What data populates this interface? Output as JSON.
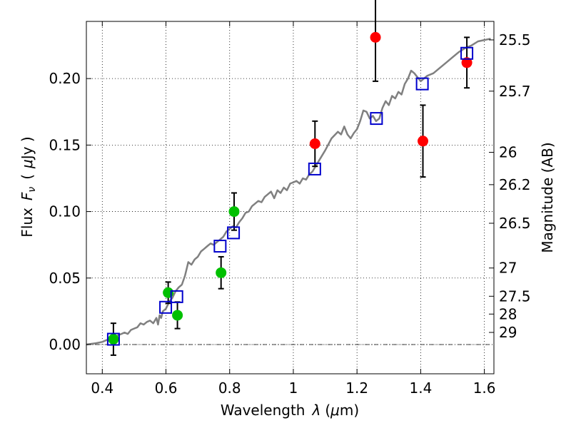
{
  "chart_data": {
    "type": "scatter",
    "xlabel": "Wavelength",
    "xlabel_symbol": "λ",
    "xlabel_unit_open": "(",
    "xlabel_unit_mu": "μ",
    "xlabel_unit_rest": "m)",
    "ylabel_left": "Flux",
    "ylabel_symbol": "F",
    "ylabel_subscript": "ν",
    "ylabel_unit_open": "(",
    "ylabel_unit_mu": "μ",
    "ylabel_unit_rest": "Jy )",
    "ylabel_right": "Magnitude (AB)",
    "xlim": [
      0.35,
      1.63
    ],
    "ylim": [
      -0.022,
      0.243
    ],
    "x_ticks": [
      {
        "value": 0.4,
        "label": "0.4"
      },
      {
        "value": 0.6,
        "label": "0.6"
      },
      {
        "value": 0.8,
        "label": "0.8"
      },
      {
        "value": 1.0,
        "label": "1"
      },
      {
        "value": 1.2,
        "label": "1.2"
      },
      {
        "value": 1.4,
        "label": "1.4"
      },
      {
        "value": 1.6,
        "label": "1.6"
      }
    ],
    "y_ticks": [
      {
        "value": 0.0,
        "label": "0.00"
      },
      {
        "value": 0.05,
        "label": "0.05"
      },
      {
        "value": 0.1,
        "label": "0.10"
      },
      {
        "value": 0.15,
        "label": "0.15"
      },
      {
        "value": 0.2,
        "label": "0.20"
      }
    ],
    "mag_ticks": [
      {
        "value": 25.5,
        "label": "25.5"
      },
      {
        "value": 25.7,
        "label": "25.7"
      },
      {
        "value": 26,
        "label": "26"
      },
      {
        "value": 26.2,
        "label": "26.2"
      },
      {
        "value": 26.5,
        "label": "26.5"
      },
      {
        "value": 27,
        "label": "27"
      },
      {
        "value": 27.5,
        "label": "27.5"
      },
      {
        "value": 28,
        "label": "28"
      },
      {
        "value": 29,
        "label": "29"
      }
    ],
    "grid": true,
    "zero_line": 0.0,
    "colors": {
      "model": "#808080",
      "green_points": "#00c000",
      "red_points": "#ff0000",
      "model_boxes": "#0000cc",
      "errorbars": "#000000"
    },
    "series": [
      {
        "name": "model spectrum",
        "kind": "line",
        "x": [
          0.35,
          0.38,
          0.4,
          0.42,
          0.44,
          0.45,
          0.46,
          0.47,
          0.48,
          0.49,
          0.5,
          0.51,
          0.52,
          0.53,
          0.54,
          0.55,
          0.56,
          0.57,
          0.575,
          0.58,
          0.585,
          0.59,
          0.6,
          0.61,
          0.62,
          0.63,
          0.64,
          0.65,
          0.66,
          0.67,
          0.68,
          0.69,
          0.7,
          0.71,
          0.72,
          0.73,
          0.74,
          0.75,
          0.76,
          0.77,
          0.78,
          0.79,
          0.8,
          0.81,
          0.82,
          0.83,
          0.84,
          0.85,
          0.86,
          0.87,
          0.88,
          0.89,
          0.9,
          0.91,
          0.92,
          0.93,
          0.94,
          0.95,
          0.96,
          0.97,
          0.98,
          0.99,
          1.0,
          1.01,
          1.02,
          1.03,
          1.04,
          1.05,
          1.06,
          1.08,
          1.1,
          1.12,
          1.14,
          1.15,
          1.16,
          1.17,
          1.18,
          1.19,
          1.2,
          1.21,
          1.22,
          1.23,
          1.24,
          1.25,
          1.26,
          1.27,
          1.28,
          1.29,
          1.3,
          1.31,
          1.32,
          1.33,
          1.34,
          1.35,
          1.36,
          1.37,
          1.38,
          1.39,
          1.4,
          1.42,
          1.44,
          1.46,
          1.48,
          1.5,
          1.52,
          1.54,
          1.56,
          1.58,
          1.6,
          1.62
        ],
        "y": [
          0.0,
          0.001,
          0.002,
          0.004,
          0.005,
          0.007,
          0.008,
          0.009,
          0.008,
          0.011,
          0.012,
          0.013,
          0.016,
          0.015,
          0.017,
          0.018,
          0.016,
          0.02,
          0.015,
          0.022,
          0.02,
          0.025,
          0.027,
          0.032,
          0.035,
          0.04,
          0.043,
          0.045,
          0.052,
          0.062,
          0.06,
          0.064,
          0.066,
          0.07,
          0.072,
          0.074,
          0.076,
          0.075,
          0.077,
          0.079,
          0.081,
          0.085,
          0.087,
          0.089,
          0.088,
          0.092,
          0.095,
          0.099,
          0.1,
          0.104,
          0.106,
          0.108,
          0.107,
          0.111,
          0.113,
          0.115,
          0.11,
          0.116,
          0.114,
          0.118,
          0.116,
          0.121,
          0.122,
          0.123,
          0.121,
          0.125,
          0.124,
          0.128,
          0.13,
          0.138,
          0.146,
          0.155,
          0.16,
          0.158,
          0.164,
          0.158,
          0.155,
          0.159,
          0.162,
          0.168,
          0.176,
          0.175,
          0.17,
          0.172,
          0.168,
          0.17,
          0.178,
          0.183,
          0.18,
          0.187,
          0.185,
          0.19,
          0.188,
          0.196,
          0.2,
          0.206,
          0.204,
          0.201,
          0.198,
          0.202,
          0.204,
          0.208,
          0.212,
          0.216,
          0.22,
          0.223,
          0.225,
          0.228,
          0.229,
          0.23
        ]
      },
      {
        "name": "measured (green)",
        "kind": "points",
        "x": [
          0.435,
          0.607,
          0.636,
          0.773,
          0.814
        ],
        "y": [
          0.004,
          0.039,
          0.022,
          0.054,
          0.1
        ],
        "yerr": [
          0.012,
          0.008,
          0.01,
          0.012,
          0.014
        ]
      },
      {
        "name": "measured (red)",
        "kind": "points",
        "x": [
          1.068,
          1.258,
          1.407,
          1.545
        ],
        "y": [
          0.151,
          0.231,
          0.153,
          0.212
        ],
        "yerr": [
          0.017,
          0.033,
          0.027,
          0.019
        ]
      },
      {
        "name": "model synthetic photometry",
        "kind": "boxes",
        "x": [
          0.435,
          0.599,
          0.634,
          0.77,
          0.812,
          1.067,
          1.261,
          1.405,
          1.545
        ],
        "y": [
          0.004,
          0.028,
          0.036,
          0.074,
          0.084,
          0.132,
          0.17,
          0.196,
          0.219
        ]
      }
    ]
  }
}
